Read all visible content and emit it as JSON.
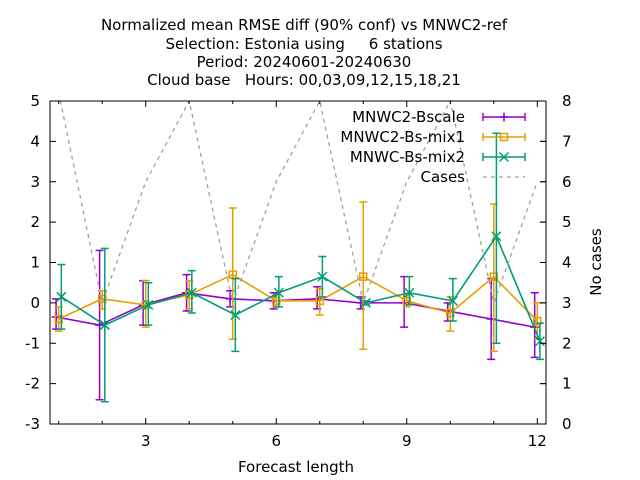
{
  "chart_data": {
    "type": "line",
    "title_lines": [
      "Normalized mean RMSE diff (90% conf) vs MNWC2-ref",
      "Selection: Estonia using     6 stations",
      "Period: 20240601-20240630",
      "Cloud base   Hours: 00,03,09,12,15,18,21"
    ],
    "xlabel": "Forecast length",
    "ylabel": "",
    "y2label": "No cases",
    "xlim": [
      0.8,
      12.2
    ],
    "ylim": [
      -3,
      5
    ],
    "y2lim": [
      0,
      8
    ],
    "xticks": [
      3,
      6,
      9,
      12
    ],
    "yticks": [
      -3,
      -2,
      -1,
      0,
      1,
      2,
      3,
      4,
      5
    ],
    "y2ticks": [
      0,
      1,
      2,
      3,
      4,
      5,
      6,
      7,
      8
    ],
    "grid": false,
    "legend_position": "top-right",
    "series": [
      {
        "name": "MNWC2-Bscale",
        "color": "#9400d3",
        "marker": "plus",
        "axis": "y",
        "x": [
          1,
          2,
          3,
          4,
          5,
          6,
          7,
          8,
          9,
          10,
          11,
          12
        ],
        "y": [
          -0.35,
          -0.55,
          -0.05,
          0.25,
          0.1,
          0.05,
          0.1,
          0.0,
          0.0,
          -0.2,
          -0.4,
          -0.6
        ],
        "err_low": [
          -0.65,
          -2.4,
          -0.55,
          -0.2,
          -0.1,
          -0.15,
          -0.15,
          -0.15,
          -0.6,
          -0.45,
          -1.4,
          -1.35
        ],
        "err_high": [
          0.1,
          1.3,
          0.55,
          0.7,
          0.3,
          0.25,
          0.4,
          0.15,
          0.65,
          0.0,
          0.6,
          0.25
        ]
      },
      {
        "name": "MNWC2-Bs-mix1",
        "color": "#e69f00",
        "marker": "square",
        "axis": "y",
        "x": [
          1,
          2,
          3,
          4,
          5,
          6,
          7,
          8,
          9,
          10,
          11,
          12
        ],
        "y": [
          -0.4,
          0.1,
          -0.05,
          0.2,
          0.7,
          0.05,
          0.05,
          0.65,
          0.05,
          -0.25,
          0.65,
          -0.45
        ],
        "err_low": [
          -0.7,
          -0.15,
          -0.6,
          -0.15,
          -0.9,
          -0.1,
          -0.3,
          -1.15,
          -0.1,
          -0.7,
          -1.2,
          -0.9
        ],
        "err_high": [
          -0.1,
          0.3,
          0.55,
          0.55,
          2.35,
          0.2,
          0.35,
          2.5,
          0.2,
          0.15,
          2.45,
          0.0
        ]
      },
      {
        "name": "MNWC-Bs-mix2",
        "color": "#009e73",
        "marker": "x",
        "axis": "y",
        "x": [
          1,
          2,
          3,
          4,
          5,
          6,
          7,
          8,
          9,
          10,
          11,
          12
        ],
        "y": [
          0.15,
          -0.55,
          -0.05,
          0.25,
          -0.3,
          0.25,
          0.65,
          0.0,
          0.25,
          0.05,
          1.65,
          -0.95
        ],
        "err_low": [
          -0.65,
          -2.45,
          -0.55,
          -0.25,
          -1.2,
          -0.1,
          0.15,
          -0.05,
          -0.05,
          -0.45,
          -1.0,
          -1.4
        ],
        "err_high": [
          0.95,
          1.35,
          0.5,
          0.8,
          0.6,
          0.65,
          1.15,
          0.05,
          0.65,
          0.6,
          4.2,
          -0.5
        ]
      },
      {
        "name": "Cases",
        "color": "#a0a0a0",
        "dashed": true,
        "axis": "y2",
        "x": [
          1,
          2,
          3,
          4,
          5,
          6,
          7,
          8,
          9,
          10,
          11,
          12
        ],
        "y": [
          8.2,
          3.0,
          6.0,
          8.0,
          3.0,
          6.0,
          8.0,
          3.0,
          6.0,
          8.0,
          3.0,
          6.0
        ]
      }
    ]
  }
}
